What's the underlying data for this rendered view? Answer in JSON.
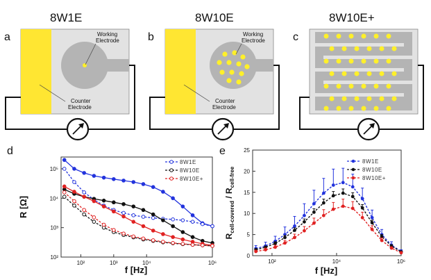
{
  "colors": {
    "yellow": "#ffe632",
    "dot": "#fff02a",
    "gray_bg": "#e2e2e2",
    "gray_elec": "#b4b4b4",
    "blue": "#2233dd",
    "black": "#111111",
    "red": "#e02222"
  },
  "panels": {
    "a": {
      "letter": "a",
      "title": "8W1E",
      "working_label": "Working\nElectrode",
      "counter_label": "Counter\nElectrode"
    },
    "b": {
      "letter": "b",
      "title": "8W10E",
      "working_label": "Working\nElectrode",
      "counter_label": "Counter\nElectrode"
    },
    "c": {
      "letter": "c",
      "title": "8W10E+"
    },
    "d": {
      "letter": "d"
    },
    "e": {
      "letter": "e"
    }
  },
  "chart_data": [
    {
      "id": "d",
      "type": "line",
      "x_scale": "log",
      "y_scale": "log",
      "xlabel": "f [Hz]",
      "ylabel": "R [Ω]",
      "x_ticks": [
        {
          "v": 2,
          "label": "10²"
        },
        {
          "v": 3,
          "label": "10³"
        },
        {
          "v": 4,
          "label": "10⁴"
        },
        {
          "v": 6,
          "label": "10⁶"
        }
      ],
      "y_ticks": [
        {
          "v": 2,
          "label": "10²"
        },
        {
          "v": 3,
          "label": "10³"
        },
        {
          "v": 4,
          "label": "10⁴"
        },
        {
          "v": 5,
          "label": "10⁵"
        }
      ],
      "xlim_log10": [
        1.4,
        6.0
      ],
      "ylim_log10": [
        2.0,
        5.4
      ],
      "legend": [
        "8W1E",
        "8W10E",
        "8W10E+"
      ],
      "legend_position": "top-right",
      "series": [
        {
          "name": "8W1E",
          "color_key": "blue",
          "marker": "filled",
          "x_log10": [
            1.5,
            1.8,
            2.1,
            2.4,
            2.7,
            3.0,
            3.3,
            3.6,
            3.9,
            4.2,
            4.5,
            4.8,
            5.1,
            5.4,
            5.7,
            6.0
          ],
          "y_log10": [
            5.3,
            5.0,
            4.86,
            4.76,
            4.7,
            4.65,
            4.6,
            4.55,
            4.48,
            4.38,
            4.22,
            4.0,
            3.72,
            3.42,
            3.15,
            3.05
          ]
        },
        {
          "name": "8W1E",
          "color_key": "blue",
          "marker": "open",
          "x_log10": [
            1.5,
            1.8,
            2.1,
            2.4,
            2.7,
            3.0,
            3.3,
            3.6,
            3.9,
            4.2,
            4.5,
            4.8,
            5.1,
            5.4,
            5.7,
            6.0
          ],
          "y_log10": [
            5.0,
            4.55,
            4.2,
            3.95,
            3.75,
            3.6,
            3.5,
            3.42,
            3.37,
            3.33,
            3.3,
            3.28,
            3.25,
            3.2,
            3.12,
            3.05
          ]
        },
        {
          "name": "8W10E",
          "color_key": "black",
          "marker": "filled",
          "x_log10": [
            1.5,
            1.8,
            2.1,
            2.4,
            2.7,
            3.0,
            3.3,
            3.6,
            3.9,
            4.2,
            4.5,
            4.8,
            5.1,
            5.4,
            5.7,
            6.0
          ],
          "y_log10": [
            4.3,
            4.15,
            4.05,
            3.98,
            3.92,
            3.86,
            3.8,
            3.72,
            3.6,
            3.45,
            3.25,
            3.05,
            2.85,
            2.68,
            2.55,
            2.48
          ]
        },
        {
          "name": "8W10E",
          "color_key": "black",
          "marker": "open",
          "x_log10": [
            1.5,
            1.8,
            2.1,
            2.4,
            2.7,
            3.0,
            3.3,
            3.6,
            3.9,
            4.2,
            4.5,
            4.8,
            5.1,
            5.4,
            5.7,
            6.0
          ],
          "y_log10": [
            4.05,
            3.75,
            3.45,
            3.2,
            3.0,
            2.85,
            2.75,
            2.67,
            2.6,
            2.55,
            2.5,
            2.47,
            2.44,
            2.42,
            2.4,
            2.38
          ]
        },
        {
          "name": "8W10E+",
          "color_key": "red",
          "marker": "filled",
          "x_log10": [
            1.5,
            1.8,
            2.1,
            2.4,
            2.7,
            3.0,
            3.3,
            3.6,
            3.9,
            4.2,
            4.5,
            4.8,
            5.1,
            5.4,
            5.7,
            6.0
          ],
          "y_log10": [
            4.4,
            4.22,
            4.05,
            3.9,
            3.72,
            3.55,
            3.38,
            3.2,
            3.05,
            2.9,
            2.78,
            2.68,
            2.6,
            2.52,
            2.45,
            2.4
          ]
        },
        {
          "name": "8W10E+",
          "color_key": "red",
          "marker": "open",
          "x_log10": [
            1.5,
            1.8,
            2.1,
            2.4,
            2.7,
            3.0,
            3.3,
            3.6,
            3.9,
            4.2,
            4.5,
            4.8,
            5.1,
            5.4,
            5.7,
            6.0
          ],
          "y_log10": [
            4.2,
            3.9,
            3.6,
            3.35,
            3.1,
            2.92,
            2.8,
            2.7,
            2.63,
            2.57,
            2.52,
            2.48,
            2.45,
            2.42,
            2.4,
            2.38
          ]
        }
      ]
    },
    {
      "id": "e",
      "type": "line",
      "x_scale": "log",
      "y_scale": "linear",
      "xlabel": "f [Hz]",
      "ylabel": "R_cell-covered / R_cell-free",
      "ylabel_parts": {
        "a": "R",
        "a_sub": "cell-covered",
        "mid": " / R",
        "b_sub": "cell-free"
      },
      "x_ticks": [
        {
          "v": 2,
          "label": "10²"
        },
        {
          "v": 4,
          "label": "10⁴"
        },
        {
          "v": 6,
          "label": "10⁶"
        }
      ],
      "y_ticks": [
        {
          "v": 0,
          "label": "0"
        },
        {
          "v": 5,
          "label": "5"
        },
        {
          "v": 10,
          "label": "10"
        },
        {
          "v": 15,
          "label": "15"
        },
        {
          "v": 20,
          "label": "20"
        },
        {
          "v": 25,
          "label": "25"
        }
      ],
      "xlim_log10": [
        1.4,
        6.0
      ],
      "ylim": [
        0,
        25
      ],
      "legend": [
        "8W1E",
        "8W10E",
        "8W10E+"
      ],
      "legend_position": "top-right",
      "series": [
        {
          "name": "8W1E",
          "color_key": "blue",
          "x_log10": [
            1.5,
            1.8,
            2.1,
            2.4,
            2.7,
            3.0,
            3.3,
            3.6,
            3.9,
            4.2,
            4.5,
            4.8,
            5.1,
            5.4,
            5.7,
            6.0
          ],
          "y": [
            1.7,
            2.3,
            3.4,
            5.0,
            7.0,
            9.5,
            12.3,
            14.8,
            16.7,
            17.3,
            16.3,
            13.5,
            9.0,
            5.0,
            2.5,
            1.0
          ],
          "err": [
            0.7,
            0.9,
            1.2,
            1.8,
            2.3,
            2.8,
            3.2,
            3.5,
            3.8,
            3.4,
            3.0,
            2.5,
            1.8,
            1.2,
            0.8,
            0.4
          ]
        },
        {
          "name": "8W10E",
          "color_key": "black",
          "x_log10": [
            1.5,
            1.8,
            2.1,
            2.4,
            2.7,
            3.0,
            3.3,
            3.6,
            3.9,
            4.2,
            4.5,
            4.8,
            5.1,
            5.4,
            5.7,
            6.0
          ],
          "y": [
            1.4,
            2.0,
            2.9,
            4.3,
            6.0,
            8.0,
            10.3,
            12.5,
            14.2,
            14.8,
            14.0,
            11.3,
            7.8,
            4.5,
            2.3,
            0.9
          ],
          "err": [
            0.3,
            0.3,
            0.4,
            0.5,
            0.6,
            0.7,
            0.8,
            0.9,
            1.0,
            1.0,
            0.9,
            0.8,
            0.6,
            0.5,
            0.3,
            0.2
          ]
        },
        {
          "name": "8W10E+",
          "color_key": "red",
          "x_log10": [
            1.5,
            1.8,
            2.1,
            2.4,
            2.7,
            3.0,
            3.3,
            3.6,
            3.9,
            4.2,
            4.5,
            4.8,
            5.1,
            5.4,
            5.7,
            6.0
          ],
          "y": [
            1.0,
            1.4,
            2.0,
            3.0,
            4.3,
            5.9,
            7.7,
            9.5,
            11.0,
            11.7,
            11.2,
            9.0,
            6.2,
            3.6,
            1.8,
            0.7
          ],
          "err": [
            0.3,
            0.4,
            0.5,
            0.6,
            0.8,
            1.0,
            1.2,
            1.4,
            1.6,
            1.7,
            1.6,
            1.3,
            0.9,
            0.6,
            0.3,
            0.2
          ]
        }
      ]
    }
  ]
}
